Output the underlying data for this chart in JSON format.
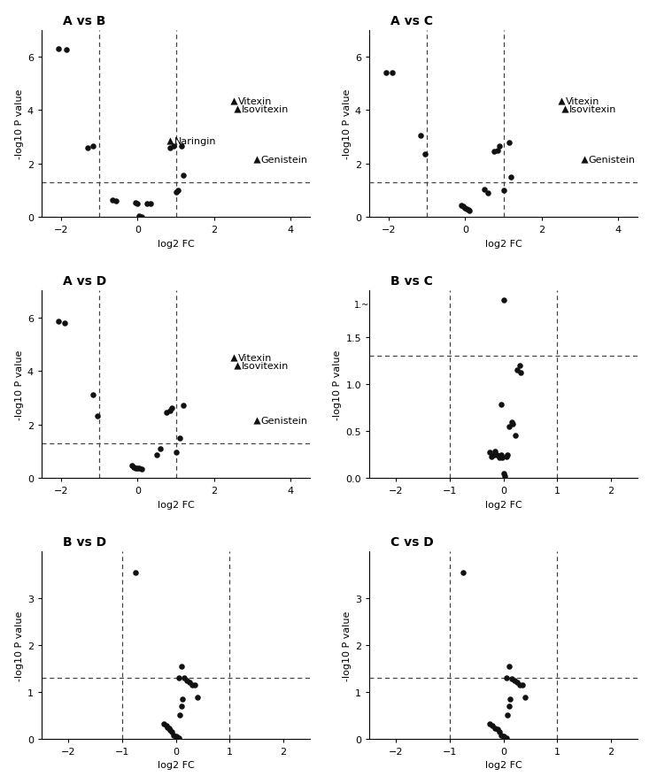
{
  "panels": [
    {
      "title": "A vs B",
      "xlim": [
        -2.5,
        4.5
      ],
      "ylim": [
        0,
        7
      ],
      "xticks": [
        -2,
        0,
        2,
        4
      ],
      "yticks": [
        0,
        2,
        4,
        6
      ],
      "vlines": [
        -1,
        1
      ],
      "hline": 1.3,
      "xlabel": "log2 FC",
      "ylabel": "-log10 P value",
      "dots": [
        [
          -2.05,
          6.3
        ],
        [
          -1.85,
          6.25
        ],
        [
          -1.3,
          2.6
        ],
        [
          -1.15,
          2.65
        ],
        [
          -0.65,
          0.65
        ],
        [
          -0.55,
          0.6
        ],
        [
          -0.05,
          0.55
        ],
        [
          0.0,
          0.5
        ],
        [
          0.05,
          0.05
        ],
        [
          0.1,
          0.0
        ],
        [
          0.25,
          0.5
        ],
        [
          0.35,
          0.5
        ],
        [
          0.85,
          2.6
        ],
        [
          0.95,
          2.65
        ],
        [
          1.0,
          0.95
        ],
        [
          1.05,
          1.0
        ],
        [
          1.15,
          2.65
        ],
        [
          1.2,
          1.55
        ]
      ],
      "triangles": [
        [
          0.85,
          2.85,
          "Naringin"
        ],
        [
          2.5,
          4.35,
          "Vitexin"
        ],
        [
          2.6,
          4.05,
          "Isovitexin"
        ],
        [
          3.1,
          2.15,
          "Genistein"
        ]
      ]
    },
    {
      "title": "A vs C",
      "xlim": [
        -2.5,
        4.5
      ],
      "ylim": [
        0,
        7
      ],
      "xticks": [
        -2,
        0,
        2,
        4
      ],
      "yticks": [
        0,
        2,
        4,
        6
      ],
      "vlines": [
        -1,
        1
      ],
      "hline": 1.3,
      "xlabel": "log2 FC",
      "ylabel": "-log10 P value",
      "dots": [
        [
          -2.05,
          5.4
        ],
        [
          -1.9,
          5.4
        ],
        [
          -1.15,
          3.05
        ],
        [
          -1.05,
          2.35
        ],
        [
          -0.1,
          0.45
        ],
        [
          -0.05,
          0.4
        ],
        [
          0.0,
          0.35
        ],
        [
          0.05,
          0.3
        ],
        [
          0.08,
          0.28
        ],
        [
          0.12,
          0.25
        ],
        [
          0.5,
          1.05
        ],
        [
          0.6,
          0.9
        ],
        [
          0.75,
          2.45
        ],
        [
          0.85,
          2.5
        ],
        [
          0.9,
          2.65
        ],
        [
          1.0,
          1.0
        ],
        [
          1.15,
          2.8
        ],
        [
          1.2,
          1.5
        ]
      ],
      "triangles": [
        [
          2.5,
          4.35,
          "Vitexin"
        ],
        [
          2.6,
          4.05,
          "Isovitexin"
        ],
        [
          3.1,
          2.15,
          "Genistein"
        ]
      ]
    },
    {
      "title": "A vs D",
      "xlim": [
        -2.5,
        4.5
      ],
      "ylim": [
        0,
        7
      ],
      "xticks": [
        -2,
        0,
        2,
        4
      ],
      "yticks": [
        0,
        2,
        4,
        6
      ],
      "vlines": [
        -1,
        1
      ],
      "hline": 1.3,
      "xlabel": "log2 FC",
      "ylabel": "-log10 P value",
      "dots": [
        [
          -2.05,
          5.85
        ],
        [
          -1.9,
          5.8
        ],
        [
          -1.15,
          3.1
        ],
        [
          -1.05,
          2.3
        ],
        [
          -0.15,
          0.45
        ],
        [
          -0.1,
          0.4
        ],
        [
          -0.05,
          0.38
        ],
        [
          0.0,
          0.35
        ],
        [
          0.05,
          0.35
        ],
        [
          0.1,
          0.33
        ],
        [
          0.5,
          0.85
        ],
        [
          0.6,
          1.1
        ],
        [
          0.75,
          2.45
        ],
        [
          0.85,
          2.5
        ],
        [
          0.9,
          2.6
        ],
        [
          1.0,
          0.95
        ],
        [
          1.1,
          1.5
        ],
        [
          1.2,
          2.7
        ]
      ],
      "triangles": [
        [
          2.5,
          4.5,
          "Vitexin"
        ],
        [
          2.6,
          4.2,
          "Isovitexin"
        ],
        [
          3.1,
          2.15,
          "Genistein"
        ]
      ]
    },
    {
      "title": "B vs C",
      "xlim": [
        -2.5,
        2.5
      ],
      "ylim": [
        0.0,
        1.8
      ],
      "xticks": [
        -2,
        -1,
        0,
        1,
        2
      ],
      "yticks": [
        0.0,
        0.5,
        1.0,
        1.5
      ],
      "ytick_labels": [
        "0.0",
        "0.5",
        "1.0",
        "1.5"
      ],
      "vlines": [
        -1,
        1
      ],
      "hline": 1.3,
      "xlabel": "log2 FC",
      "ylabel": "-log10 P value",
      "dots": [
        [
          -0.25,
          0.27
        ],
        [
          -0.22,
          0.23
        ],
        [
          -0.18,
          0.25
        ],
        [
          -0.15,
          0.28
        ],
        [
          -0.12,
          0.25
        ],
        [
          -0.08,
          0.22
        ],
        [
          -0.05,
          0.25
        ],
        [
          -0.02,
          0.22
        ],
        [
          0.0,
          0.05
        ],
        [
          0.02,
          0.02
        ],
        [
          0.05,
          0.23
        ],
        [
          0.08,
          0.25
        ],
        [
          0.1,
          0.55
        ],
        [
          0.15,
          0.6
        ],
        [
          0.18,
          0.58
        ],
        [
          0.22,
          0.45
        ],
        [
          0.25,
          1.15
        ],
        [
          0.3,
          1.2
        ],
        [
          0.32,
          1.12
        ],
        [
          -0.05,
          0.78
        ],
        [
          0.0,
          1.9
        ]
      ],
      "triangles": []
    },
    {
      "title": "B vs D",
      "xlim": [
        -2.5,
        2.5
      ],
      "ylim": [
        0,
        4.0
      ],
      "xticks": [
        -2,
        -1,
        0,
        1,
        2
      ],
      "yticks": [
        0,
        1,
        2,
        3
      ],
      "vlines": [
        -1,
        1
      ],
      "hline": 1.3,
      "xlabel": "log2 FC",
      "ylabel": "-log10 P value",
      "dots": [
        [
          -0.75,
          3.55
        ],
        [
          -0.22,
          0.32
        ],
        [
          -0.18,
          0.28
        ],
        [
          -0.15,
          0.25
        ],
        [
          -0.12,
          0.22
        ],
        [
          -0.1,
          0.18
        ],
        [
          -0.08,
          0.15
        ],
        [
          -0.05,
          0.08
        ],
        [
          0.0,
          0.05
        ],
        [
          0.02,
          0.03
        ],
        [
          0.05,
          0.02
        ],
        [
          0.08,
          0.5
        ],
        [
          0.1,
          0.7
        ],
        [
          0.12,
          0.85
        ],
        [
          0.05,
          1.3
        ],
        [
          0.1,
          1.55
        ],
        [
          0.15,
          1.3
        ],
        [
          0.2,
          1.25
        ],
        [
          0.25,
          1.2
        ],
        [
          0.3,
          1.15
        ],
        [
          0.35,
          1.15
        ],
        [
          0.4,
          0.88
        ]
      ],
      "triangles": []
    },
    {
      "title": "C vs D",
      "xlim": [
        -2.5,
        2.5
      ],
      "ylim": [
        0,
        4.0
      ],
      "xticks": [
        -2,
        -1,
        0,
        1,
        2
      ],
      "yticks": [
        0,
        1,
        2,
        3
      ],
      "vlines": [
        -1,
        1
      ],
      "hline": 1.3,
      "xlabel": "log2 FC",
      "ylabel": "-log10 P value",
      "dots": [
        [
          -0.75,
          3.55
        ],
        [
          -0.25,
          0.32
        ],
        [
          -0.2,
          0.28
        ],
        [
          -0.15,
          0.22
        ],
        [
          -0.1,
          0.2
        ],
        [
          -0.08,
          0.15
        ],
        [
          -0.05,
          0.08
        ],
        [
          0.0,
          0.05
        ],
        [
          0.02,
          0.02
        ],
        [
          0.05,
          0.02
        ],
        [
          0.08,
          0.5
        ],
        [
          0.1,
          0.7
        ],
        [
          0.12,
          0.85
        ],
        [
          0.05,
          1.3
        ],
        [
          0.1,
          1.55
        ],
        [
          0.15,
          1.28
        ],
        [
          0.2,
          1.25
        ],
        [
          0.25,
          1.2
        ],
        [
          0.3,
          1.15
        ],
        [
          0.35,
          1.15
        ],
        [
          0.4,
          0.88
        ]
      ],
      "triangles": []
    }
  ],
  "dot_color": "#111111",
  "dot_size": 22,
  "tri_color": "#111111",
  "tri_size": 35,
  "line_color": "#444444",
  "font_size": 8,
  "title_font_size": 10,
  "label_font_size": 8,
  "tri_label_fontsize": 8
}
